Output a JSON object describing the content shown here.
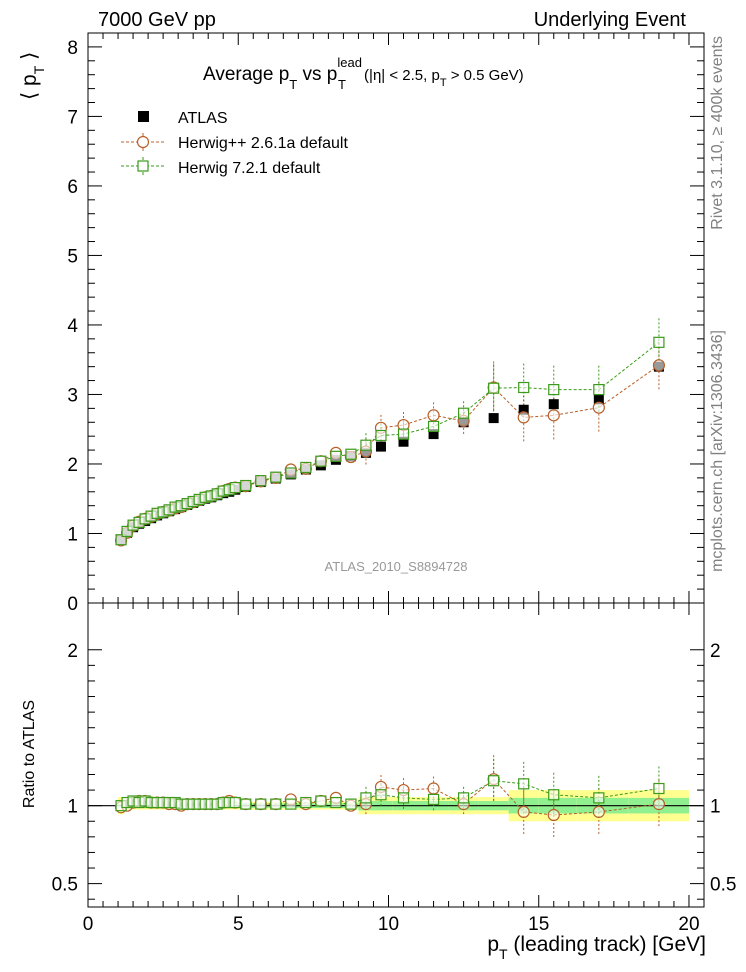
{
  "header": {
    "left": "7000 GeV pp",
    "right": "Underlying Event"
  },
  "side": {
    "top": "Rivet 3.1.10, ≥ 400k events",
    "bottom": "mcplots.cern.ch [arXiv:1306.3436]"
  },
  "chart_data": {
    "type": "scatter",
    "title_main": "Average p",
    "title_sub_t": "T",
    "title_vs": " vs p",
    "title_sup": "lead",
    "title_sub_t2": "T",
    "title_cuts": " (|η| < 2.5, p",
    "title_cuts_sub": "T",
    "title_cuts_end": " > 0.5 GeV)",
    "ylabel_main": "⟨ p",
    "ylabel_sub": "T",
    "ylabel_end": " ⟩",
    "ratio_ylabel": "Ratio to ATLAS",
    "xlabel_main": "p",
    "xlabel_sub": "T",
    "xlabel_end": " (leading track) [GeV]",
    "watermark": "ATLAS_2010_S8894728",
    "xlim": [
      0,
      20.5
    ],
    "ylim": [
      0,
      8.2
    ],
    "ratio_ylim": [
      0.35,
      2.3
    ],
    "x_ticks": [
      "0",
      "5",
      "10",
      "15",
      "20"
    ],
    "y_ticks": [
      "0",
      "1",
      "2",
      "3",
      "4",
      "5",
      "6",
      "7",
      "8"
    ],
    "ratio_ticks": [
      "0.5",
      "1",
      "2"
    ],
    "legend": {
      "atlas": "ATLAS",
      "herwigpp": "Herwig++ 2.6.1a default",
      "herwig7": "Herwig 7.2.1 default"
    },
    "colors": {
      "atlas": "#000000",
      "herwigpp": "#b8602a",
      "herwig7": "#3a9a1a",
      "band_inner": "#90f090",
      "band_outer": "#ffff90"
    },
    "x": [
      1.1,
      1.3,
      1.5,
      1.7,
      1.9,
      2.1,
      2.3,
      2.5,
      2.7,
      2.9,
      3.1,
      3.3,
      3.5,
      3.7,
      3.9,
      4.1,
      4.3,
      4.5,
      4.7,
      4.9,
      5.25,
      5.75,
      6.25,
      6.75,
      7.25,
      7.75,
      8.25,
      8.75,
      9.25,
      9.75,
      10.5,
      11.5,
      12.5,
      13.5,
      14.5,
      15.5,
      17.0,
      19.0
    ],
    "atlas": [
      0.91,
      1.01,
      1.09,
      1.14,
      1.18,
      1.22,
      1.26,
      1.29,
      1.32,
      1.35,
      1.38,
      1.41,
      1.44,
      1.47,
      1.5,
      1.52,
      1.55,
      1.58,
      1.6,
      1.63,
      1.67,
      1.74,
      1.79,
      1.85,
      1.92,
      1.98,
      2.06,
      2.11,
      2.16,
      2.25,
      2.32,
      2.43,
      2.6,
      2.66,
      2.78,
      2.86,
      2.93,
      3.4
    ],
    "herwigpp": [
      0.9,
      1.01,
      1.11,
      1.17,
      1.21,
      1.24,
      1.28,
      1.31,
      1.33,
      1.36,
      1.38,
      1.42,
      1.45,
      1.48,
      1.52,
      1.54,
      1.57,
      1.61,
      1.64,
      1.66,
      1.68,
      1.75,
      1.8,
      1.92,
      1.93,
      2.04,
      2.16,
      2.1,
      2.18,
      2.52,
      2.56,
      2.7,
      2.62,
      3.1,
      2.67,
      2.7,
      2.81,
      3.42
    ],
    "herwig7": [
      0.91,
      1.03,
      1.12,
      1.16,
      1.21,
      1.25,
      1.29,
      1.31,
      1.34,
      1.38,
      1.4,
      1.43,
      1.46,
      1.49,
      1.52,
      1.54,
      1.57,
      1.61,
      1.63,
      1.66,
      1.69,
      1.76,
      1.81,
      1.87,
      1.95,
      2.04,
      2.11,
      2.14,
      2.27,
      2.41,
      2.43,
      2.54,
      2.73,
      3.09,
      3.1,
      3.07,
      3.07,
      3.75
    ],
    "ratio_herwigpp": [
      0.99,
      1.0,
      1.02,
      1.03,
      1.03,
      1.02,
      1.02,
      1.02,
      1.01,
      1.01,
      1.0,
      1.01,
      1.01,
      1.01,
      1.01,
      1.01,
      1.01,
      1.02,
      1.03,
      1.02,
      1.01,
      1.01,
      1.01,
      1.04,
      1.01,
      1.03,
      1.05,
      1.0,
      1.01,
      1.12,
      1.1,
      1.11,
      1.01,
      1.17,
      0.96,
      0.94,
      0.96,
      1.01
    ],
    "ratio_herwig7": [
      1.0,
      1.02,
      1.03,
      1.02,
      1.03,
      1.02,
      1.02,
      1.02,
      1.02,
      1.02,
      1.01,
      1.01,
      1.01,
      1.01,
      1.01,
      1.01,
      1.01,
      1.02,
      1.02,
      1.02,
      1.01,
      1.01,
      1.01,
      1.01,
      1.02,
      1.03,
      1.02,
      1.01,
      1.05,
      1.07,
      1.05,
      1.04,
      1.05,
      1.16,
      1.14,
      1.07,
      1.05,
      1.11
    ]
  }
}
